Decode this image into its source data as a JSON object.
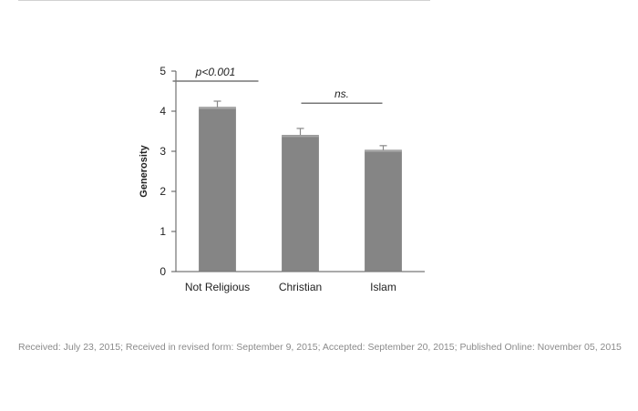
{
  "chart_data": {
    "type": "bar",
    "categories": [
      "Not Religious",
      "Christian",
      "Islam"
    ],
    "values": [
      4.1,
      3.4,
      3.03
    ],
    "errors": [
      0.15,
      0.17,
      0.11
    ],
    "ylabel": "Generosity",
    "ylim": [
      0,
      5
    ],
    "yticks": [
      "0",
      "1",
      "2",
      "3",
      "4",
      "5"
    ],
    "grid": false,
    "bar_color": "#858585",
    "annotations": [
      {
        "text": "p<0.001",
        "from": "Not Religious",
        "to": "Christian",
        "y": 4.75
      },
      {
        "text": "ns.",
        "from": "Christian",
        "to": "Islam",
        "y": 4.2
      }
    ]
  },
  "footer": {
    "received_text": "Received: July 23, 2015; Received in revised form: September 9, 2015; Accepted: September 20, 2015; Published Online: November 05, 2015"
  }
}
